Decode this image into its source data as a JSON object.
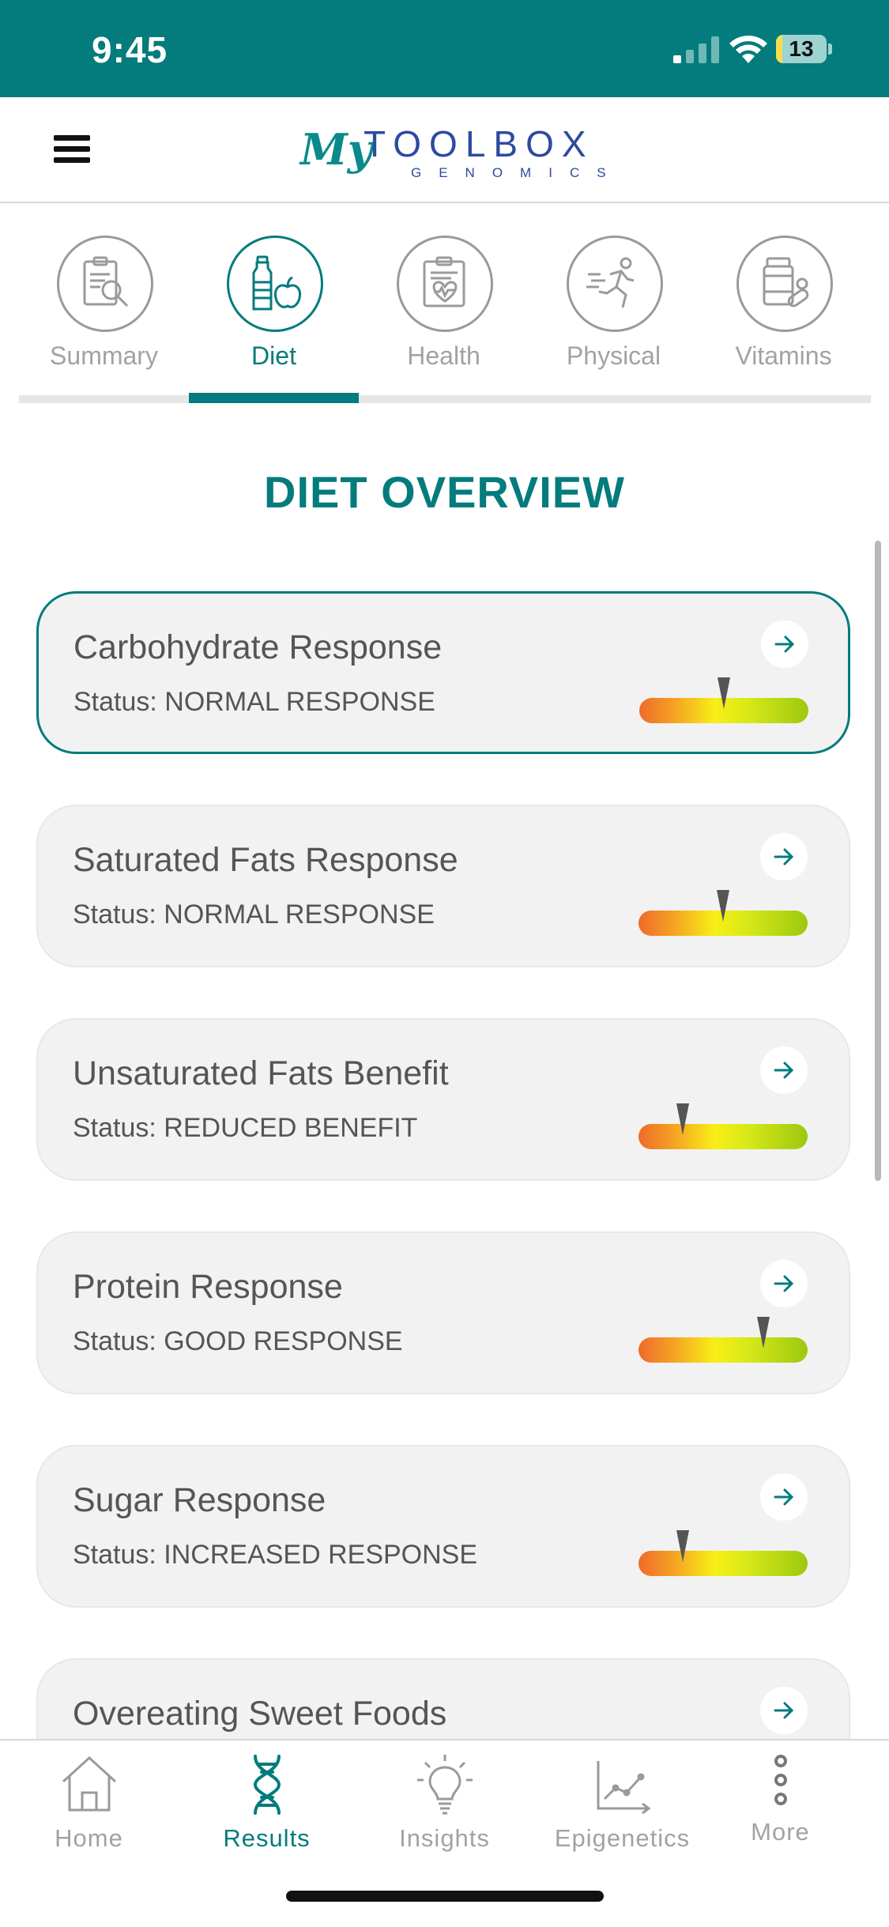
{
  "status_bar": {
    "time": "9:45",
    "battery_level": "13",
    "battery_fraction": 0.13
  },
  "header": {
    "menu_icon": "hamburger-menu-icon",
    "logo": {
      "line1_script": "My",
      "line1": "TOOLBOX",
      "line2": "GENOMICS"
    }
  },
  "tabs": [
    {
      "label": "Summary",
      "icon": "clipboard-magnifier-icon",
      "active": false
    },
    {
      "label": "Diet",
      "icon": "bottle-apple-icon",
      "active": true
    },
    {
      "label": "Health",
      "icon": "clipboard-heart-icon",
      "active": false
    },
    {
      "label": "Physical",
      "icon": "running-person-icon",
      "active": false
    },
    {
      "label": "Vitamins",
      "icon": "pill-bottle-icon",
      "active": false
    }
  ],
  "section_title": "DIET OVERVIEW",
  "cards": [
    {
      "title": "Carbohydrate Response",
      "status": "Status: NORMAL RESPONSE",
      "gauge_level": 0.5,
      "selected": true
    },
    {
      "title": "Saturated Fats Response",
      "status": "Status: NORMAL RESPONSE",
      "gauge_level": 0.5,
      "selected": false
    },
    {
      "title": "Unsaturated Fats Benefit",
      "status": "Status: REDUCED BENEFIT",
      "gauge_level": 0.26,
      "selected": false
    },
    {
      "title": "Protein Response",
      "status": "Status: GOOD RESPONSE",
      "gauge_level": 0.74,
      "selected": false
    },
    {
      "title": "Sugar Response",
      "status": "Status: INCREASED RESPONSE",
      "gauge_level": 0.26,
      "selected": false
    },
    {
      "title": "Overeating Sweet Foods",
      "status": "",
      "gauge_level": null,
      "selected": false
    }
  ],
  "bottom_nav": [
    {
      "label": "Home",
      "icon": "house-icon",
      "active": false
    },
    {
      "label": "Results",
      "icon": "dna-icon",
      "active": true
    },
    {
      "label": "Insights",
      "icon": "lightbulb-icon",
      "active": false
    },
    {
      "label": "Epigenetics",
      "icon": "line-graph-icon",
      "active": false
    },
    {
      "label": "More",
      "icon": "vertical-dots-icon",
      "active": false
    }
  ],
  "colors": {
    "brand_teal": "#047b7c",
    "inactive_gray": "#a2a2a2",
    "card_bg": "#f2f2f2"
  }
}
